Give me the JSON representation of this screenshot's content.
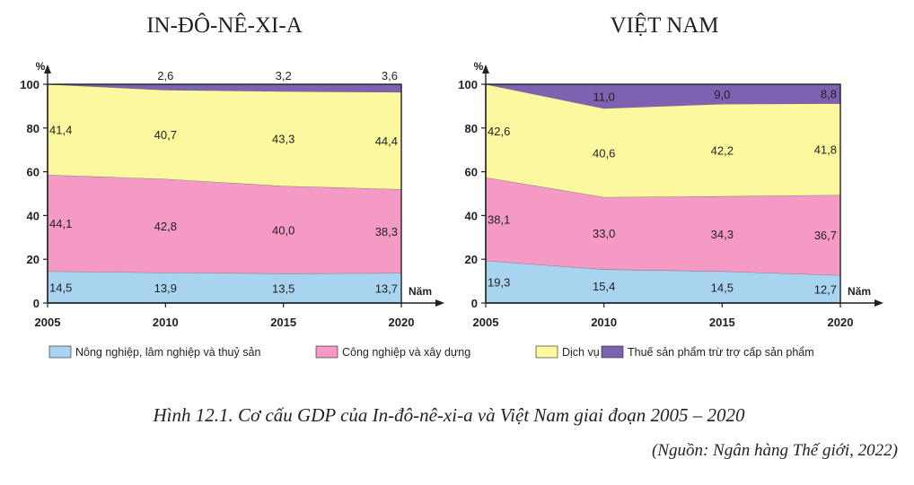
{
  "chart_data": [
    {
      "type": "area",
      "stacked": true,
      "title": "IN-ĐÔ-NÊ-XI-A",
      "x": [
        2005,
        2010,
        2015,
        2020
      ],
      "x_tick_labels": [
        "2005",
        "2010",
        "2015",
        "2020"
      ],
      "xlabel": "Năm",
      "ylabel": "%",
      "ylim": [
        0,
        100
      ],
      "y_ticks": [
        "0",
        "20",
        "40",
        "60",
        "80",
        "100"
      ],
      "grid": false,
      "series": [
        {
          "name": "Nông nghiệp, lâm nghiệp và thuỷ sản",
          "values": [
            14.5,
            13.9,
            13.5,
            13.7
          ],
          "labels": [
            "14,5",
            "13,9",
            "13,5",
            "13,7"
          ]
        },
        {
          "name": "Công nghiệp và xây dựng",
          "values": [
            44.1,
            42.8,
            40.0,
            38.3
          ],
          "labels": [
            "44,1",
            "42,8",
            "40,0",
            "38,3"
          ]
        },
        {
          "name": "Dịch vụ",
          "values": [
            41.4,
            40.7,
            43.3,
            44.4
          ],
          "labels": [
            "41,4",
            "40,7",
            "43,3",
            "44,4"
          ]
        },
        {
          "name": "Thuế sản phẩm trừ trợ cấp sản phẩm",
          "values": [
            0,
            2.6,
            3.2,
            3.6
          ],
          "labels": [
            "",
            "2,6",
            "3,2",
            "3,6"
          ]
        }
      ]
    },
    {
      "type": "area",
      "stacked": true,
      "title": "VIỆT NAM",
      "x": [
        2005,
        2010,
        2015,
        2020
      ],
      "x_tick_labels": [
        "2005",
        "2010",
        "2015",
        "2020"
      ],
      "xlabel": "Năm",
      "ylabel": "%",
      "ylim": [
        0,
        100
      ],
      "y_ticks": [
        "0",
        "20",
        "40",
        "60",
        "80",
        "100"
      ],
      "grid": false,
      "series": [
        {
          "name": "Nông nghiệp, lâm nghiệp và thuỷ sản",
          "values": [
            19.3,
            15.4,
            14.5,
            12.7
          ],
          "labels": [
            "19,3",
            "15,4",
            "14,5",
            "12,7"
          ]
        },
        {
          "name": "Công nghiệp và xây dựng",
          "values": [
            38.1,
            33.0,
            34.3,
            36.7
          ],
          "labels": [
            "38,1",
            "33,0",
            "34,3",
            "36,7"
          ]
        },
        {
          "name": "Dịch vụ",
          "values": [
            42.6,
            40.6,
            42.2,
            41.8
          ],
          "labels": [
            "42,6",
            "40,6",
            "42,2",
            "41,8"
          ]
        },
        {
          "name": "Thuế sản phẩm trừ trợ cấp sản phẩm",
          "values": [
            0,
            11.0,
            9.0,
            8.8
          ],
          "labels": [
            "",
            "11,0",
            "9,0",
            "8,8"
          ]
        }
      ]
    }
  ],
  "colors": [
    "#a8d4f0",
    "#f49ac4",
    "#fbf8a0",
    "#7d62b1"
  ],
  "legend": [
    {
      "label": "Nông nghiệp, lâm nghiệp và thuỷ sản",
      "color": "#a8d4f0"
    },
    {
      "label": "Công nghiệp và xây dựng",
      "color": "#f49ac4"
    },
    {
      "label": "Dịch vụ",
      "color": "#fbf8a0"
    },
    {
      "label": "Thuế sản phẩm trừ trợ cấp sản phẩm",
      "color": "#7d62b1"
    }
  ],
  "caption": "Hình 12.1. Cơ cấu GDP của In-đô-nê-xi-a và Việt Nam giai đoạn 2005 – 2020",
  "source": "(Nguồn: Ngân hàng Thế giới, 2022)"
}
